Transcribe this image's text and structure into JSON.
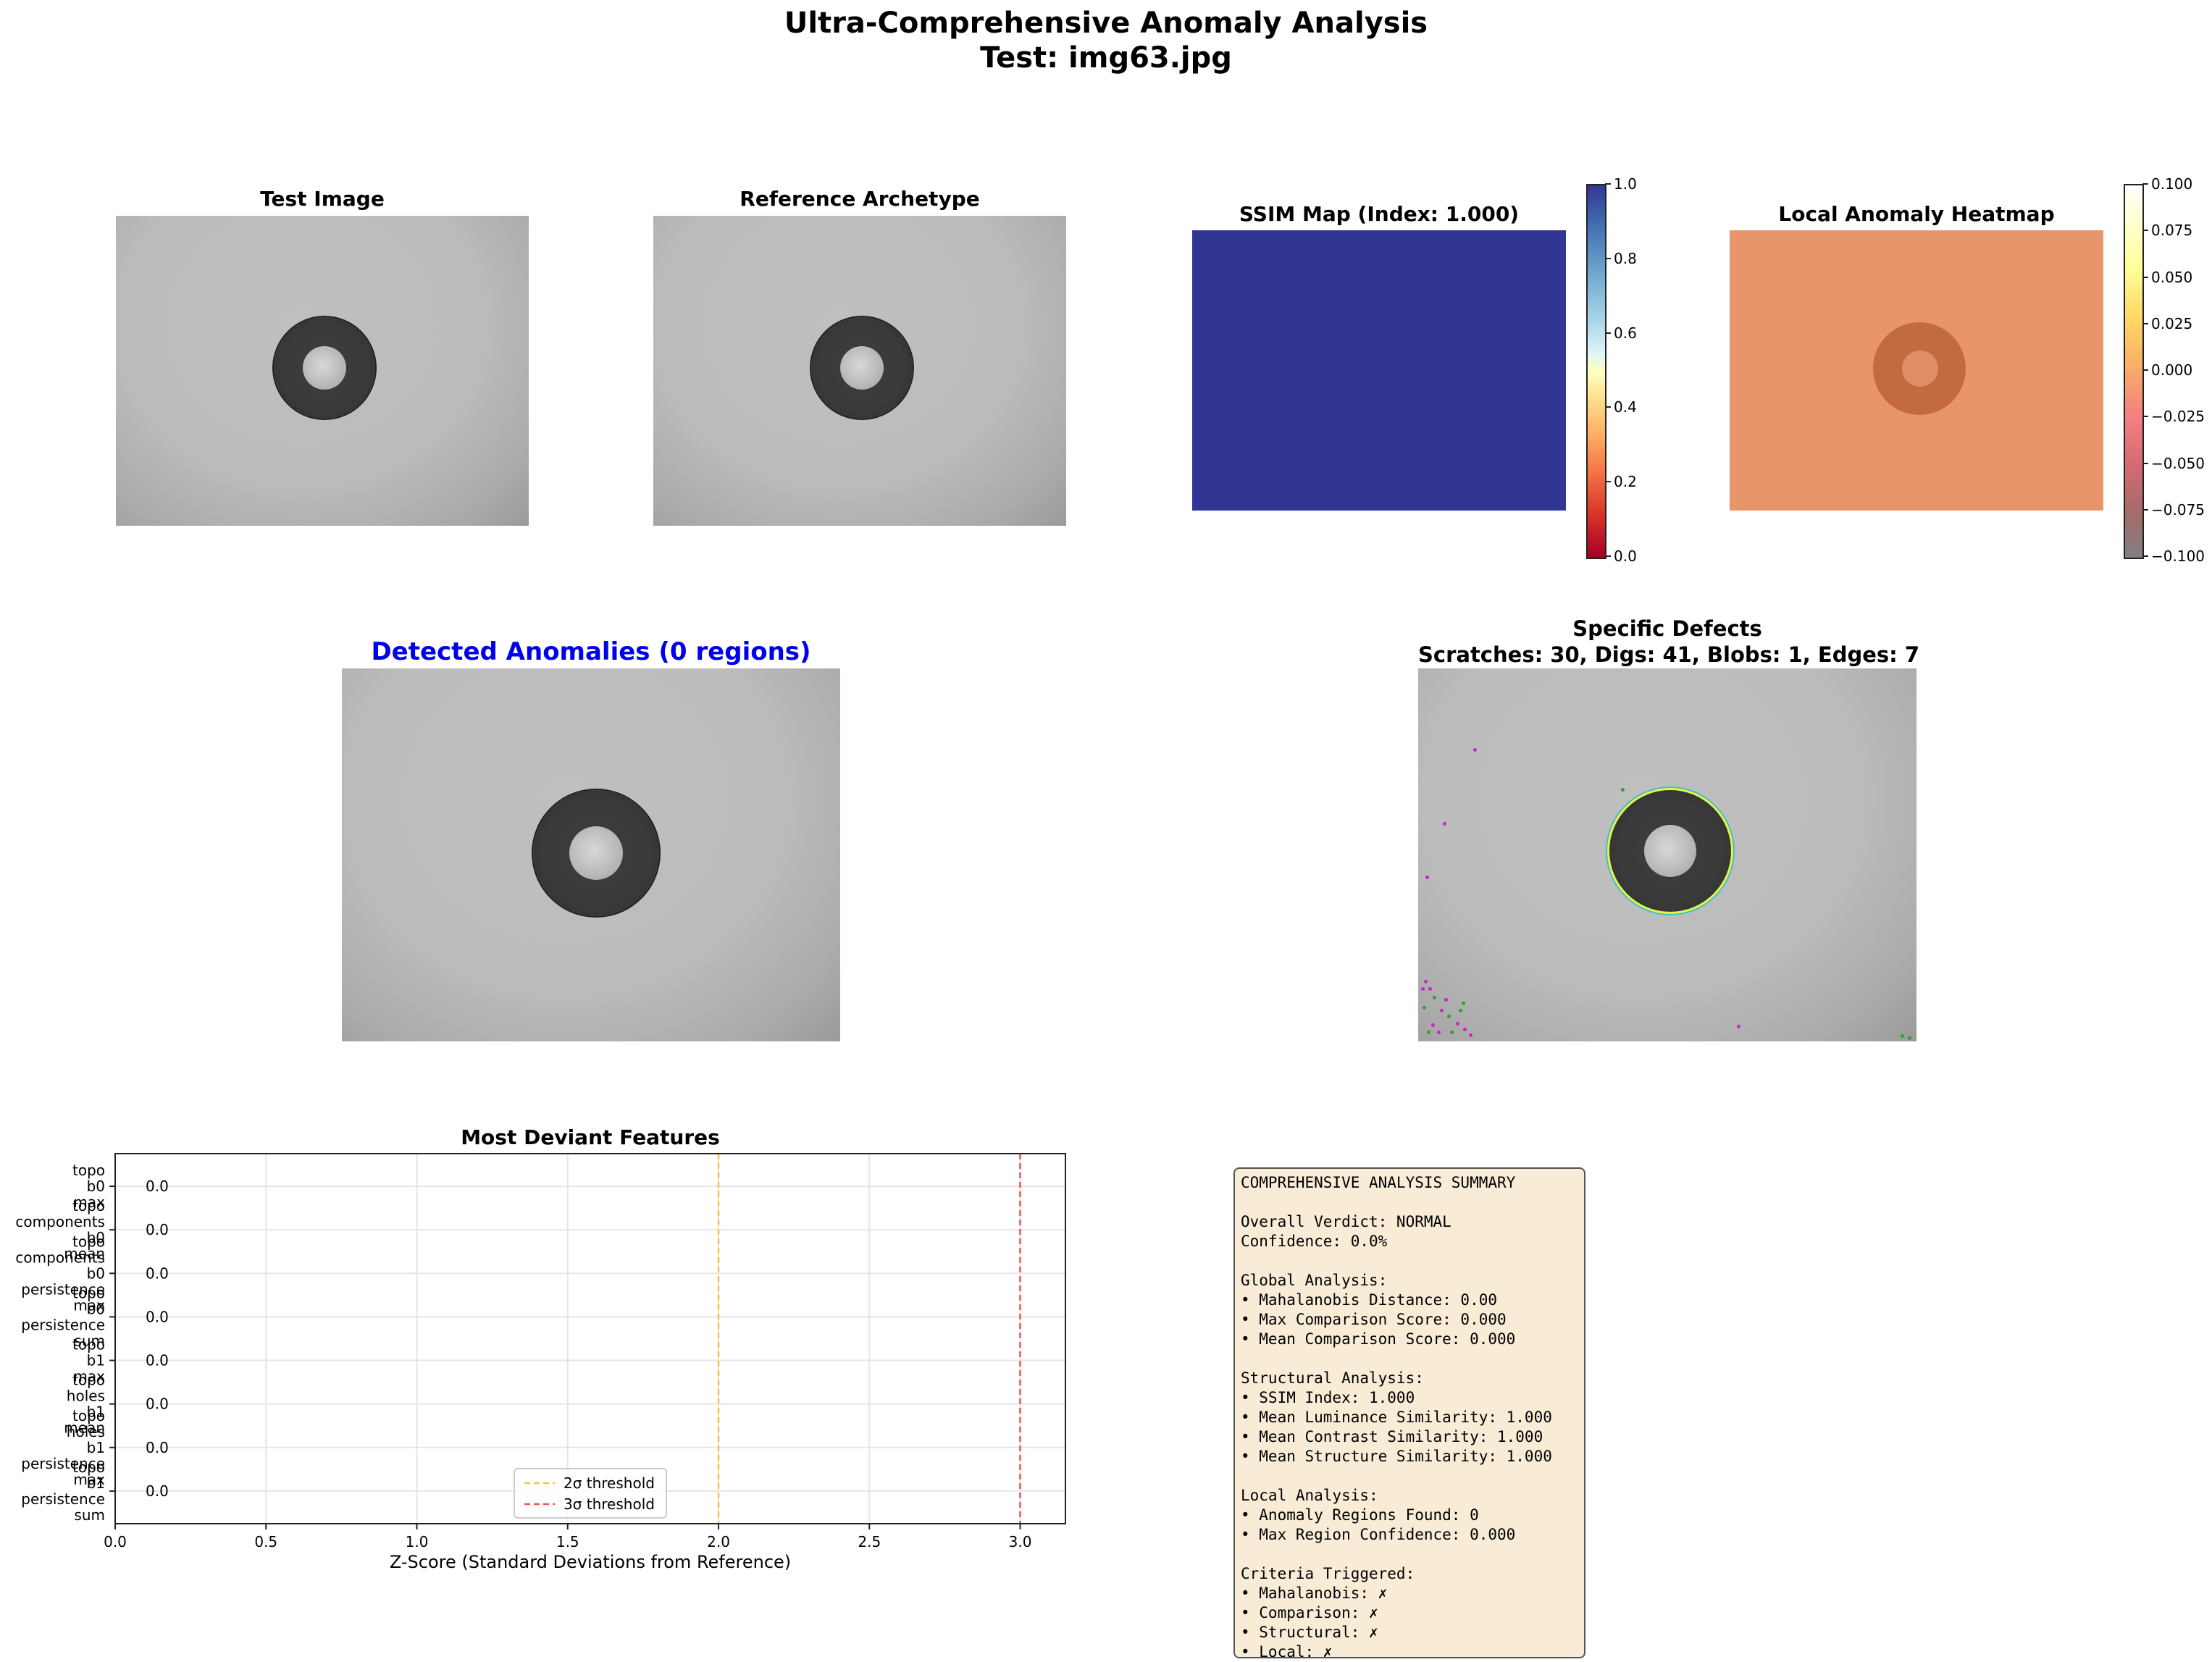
{
  "figure": {
    "title_line1": "Ultra-Comprehensive Anomaly Analysis",
    "title_line2": "Test: img63.jpg"
  },
  "panels": {
    "test_image": {
      "title": "Test Image"
    },
    "reference": {
      "title": "Reference Archetype"
    },
    "ssim_map": {
      "title": "SSIM Map (Index: 1.000)",
      "colorbar_ticks": [
        "1.0",
        "0.8",
        "0.6",
        "0.4",
        "0.2",
        "0.0"
      ],
      "fill_color": "#313695"
    },
    "local_heatmap": {
      "title": "Local Anomaly Heatmap",
      "colorbar_ticks": [
        "0.100",
        "0.075",
        "0.050",
        "0.025",
        "0.000",
        "−0.025",
        "−0.050",
        "−0.075",
        "−0.100"
      ],
      "fill_color": "#e8956b"
    },
    "detected": {
      "title": "Detected Anomalies (0 regions)",
      "title_color": "#0000ee"
    },
    "defects": {
      "title_line1": "Specific Defects",
      "title_line2": "Scratches: 30, Digs: 41, Blobs: 1, Edges: 7"
    }
  },
  "chart_data": {
    "type": "bar",
    "title": "Most Deviant Features",
    "xlabel": "Z-Score (Standard Deviations from Reference)",
    "ylabel": "",
    "xlim": [
      0,
      3.15
    ],
    "xticks": [
      "0.0",
      "0.5",
      "1.0",
      "1.5",
      "2.0",
      "2.5",
      "3.0"
    ],
    "orientation": "horizontal",
    "categories": [
      "topo\nb0\nmax",
      "topo\ncomponents\nb0\nmean",
      "topo\ncomponents\nb0\npersistence\nmax",
      "topo\nb0\npersistence\nsum",
      "topo\nb1\nmax",
      "topo\nholes\nb1\nmean",
      "topo\nholes\nb1\npersistence\nmax",
      "topo\nb1\npersistence\nsum"
    ],
    "values": [
      0.0,
      0.0,
      0.0,
      0.0,
      0.0,
      0.0,
      0.0,
      0.0
    ],
    "value_labels": [
      "0.0",
      "0.0",
      "0.0",
      "0.0",
      "0.0",
      "0.0",
      "0.0",
      "0.0"
    ],
    "thresholds": [
      {
        "name": "2σ threshold",
        "value": 2.0,
        "color": "#f5c542"
      },
      {
        "name": "3σ threshold",
        "value": 3.0,
        "color": "#ee5555"
      }
    ],
    "grid": true,
    "legend_position": "lower-center"
  },
  "summary": {
    "lines": [
      "COMPREHENSIVE ANALYSIS SUMMARY",
      "",
      "Overall Verdict: NORMAL",
      "Confidence: 0.0%",
      "",
      "Global Analysis:",
      "• Mahalanobis Distance: 0.00",
      "• Max Comparison Score: 0.000",
      "• Mean Comparison Score: 0.000",
      "",
      "Structural Analysis:",
      "• SSIM Index: 1.000",
      "• Mean Luminance Similarity: 1.000",
      "• Mean Contrast Similarity: 1.000",
      "• Mean Structure Similarity: 1.000",
      "",
      "Local Analysis:",
      "• Anomaly Regions Found: 0",
      "• Max Region Confidence: 0.000",
      "",
      "Criteria Triggered:",
      "• Mahalanobis: ✗",
      "• Comparison: ✗",
      "• Structural: ✗",
      "• Local: ✗"
    ],
    "bg_color": "#f8ecd6"
  }
}
